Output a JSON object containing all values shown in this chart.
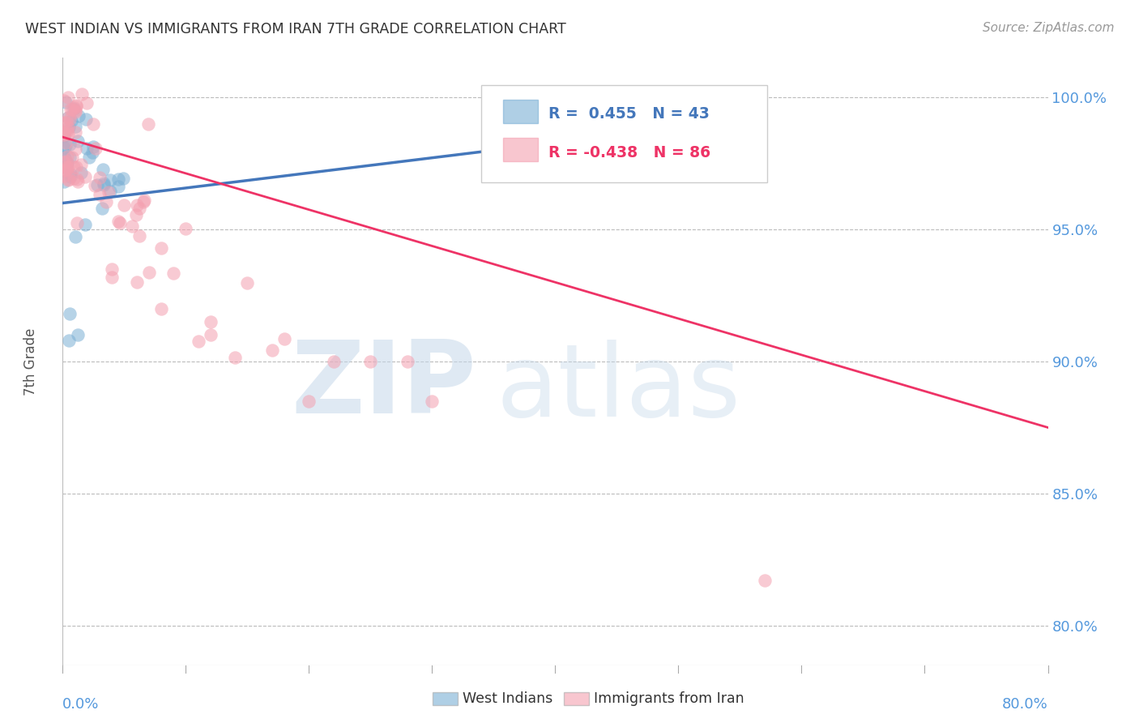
{
  "title": "WEST INDIAN VS IMMIGRANTS FROM IRAN 7TH GRADE CORRELATION CHART",
  "source": "Source: ZipAtlas.com",
  "ylabel": "7th Grade",
  "ytick_labels": [
    "80.0%",
    "85.0%",
    "90.0%",
    "95.0%",
    "100.0%"
  ],
  "ytick_values": [
    0.8,
    0.85,
    0.9,
    0.95,
    1.0
  ],
  "xlim": [
    0.0,
    0.8
  ],
  "ylim": [
    0.785,
    1.015
  ],
  "legend_blue_label": "R =  0.455   N = 43",
  "legend_pink_label": "R = -0.438   N = 86",
  "legend_west_indians": "West Indians",
  "legend_immigrants_iran": "Immigrants from Iran",
  "blue_color": "#7BAFD4",
  "pink_color": "#F4A0B0",
  "blue_line_color": "#4477BB",
  "pink_line_color": "#EE3366",
  "background_color": "#FFFFFF",
  "grid_color": "#BBBBBB",
  "blue_line_x": [
    0.0,
    0.42
  ],
  "blue_line_y": [
    0.96,
    0.984
  ],
  "pink_line_x": [
    0.0,
    0.8
  ],
  "pink_line_y": [
    0.985,
    0.875
  ],
  "watermark_zip_color": "#C5D8EA",
  "watermark_atlas_color": "#C5D8EA",
  "right_label_color": "#5599DD",
  "title_color": "#333333",
  "source_color": "#999999",
  "ylabel_color": "#555555",
  "bottom_label_color": "#5599DD"
}
